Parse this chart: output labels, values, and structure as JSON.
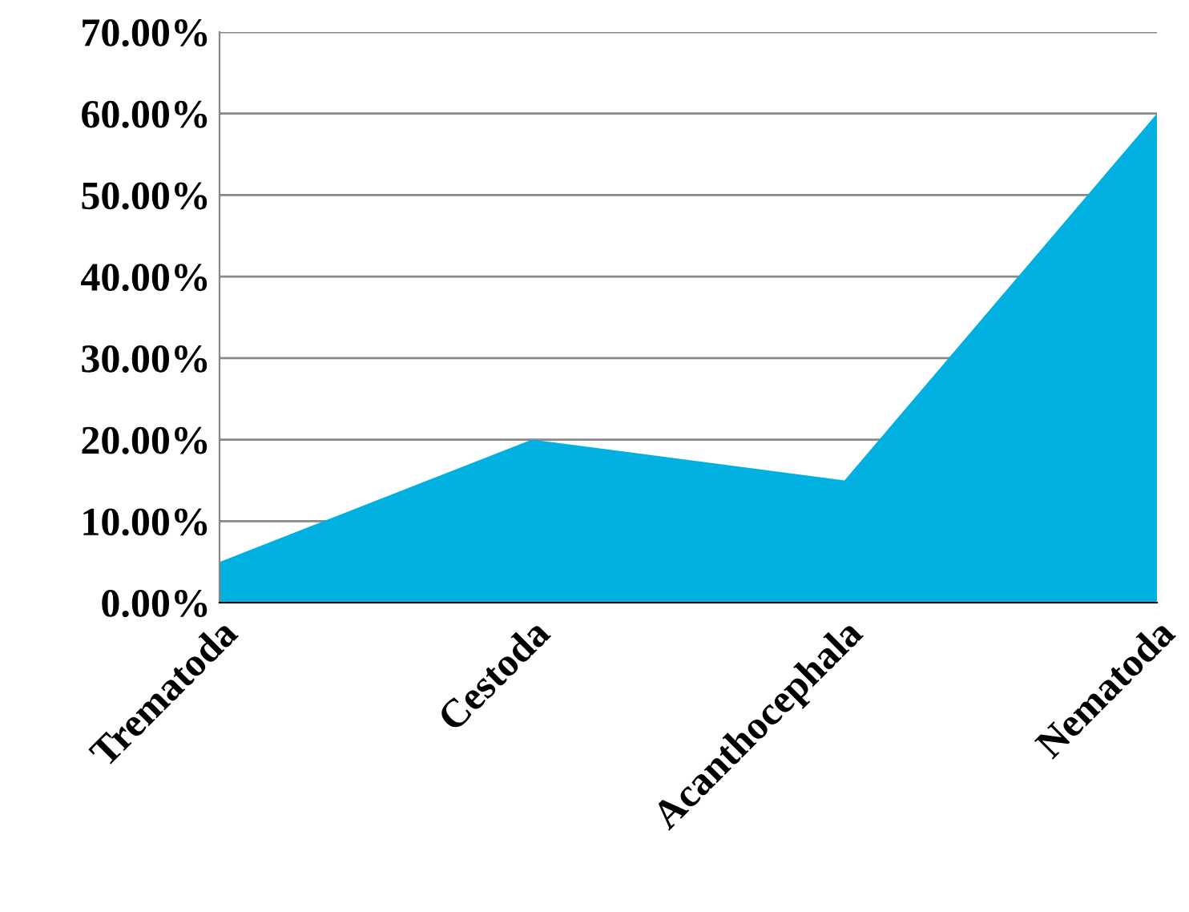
{
  "chart_data": {
    "type": "area",
    "categories": [
      "Trematoda",
      "Cestoda",
      "Acanthocephala",
      "Nematoda"
    ],
    "series": [
      {
        "color": "#00b0e0",
        "values": [
          5,
          20,
          15,
          60
        ]
      }
    ],
    "ylim": [
      0,
      70
    ],
    "yticks": [
      {
        "value": 0,
        "label": "0.00%"
      },
      {
        "value": 10,
        "label": "10.00%"
      },
      {
        "value": 20,
        "label": "20.00%"
      },
      {
        "value": 30,
        "label": "30.00%"
      },
      {
        "value": 40,
        "label": "40.00%"
      },
      {
        "value": 50,
        "label": "50.00%"
      },
      {
        "value": 60,
        "label": "60.00%"
      },
      {
        "value": 70,
        "label": "70.00%"
      }
    ],
    "grid": "y",
    "legend": false
  }
}
